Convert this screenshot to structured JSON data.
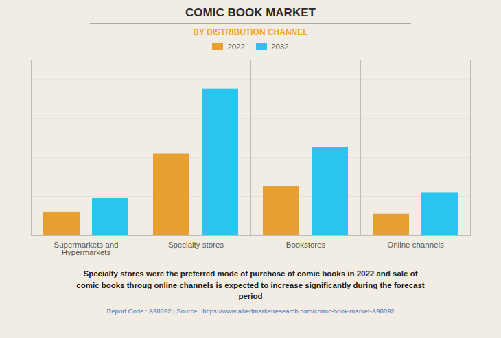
{
  "chart_data": {
    "type": "bar",
    "title": "COMIC BOOK MARKET",
    "subtitle": "BY DISTRIBUTION CHANNEL",
    "categories": [
      "Supermarkets and\nHypermarkets",
      "Specialty stores",
      "Bookstores",
      "Online channels"
    ],
    "series": [
      {
        "name": "2022",
        "color": "#E8A030",
        "values": [
          1.2,
          4.2,
          2.5,
          1.1
        ]
      },
      {
        "name": "2032",
        "color": "#29C4F0",
        "values": [
          1.9,
          7.5,
          4.5,
          2.2
        ]
      }
    ],
    "ylim": [
      0,
      9
    ],
    "yticks": [
      0,
      2,
      4,
      6,
      8
    ],
    "grid": true,
    "legend": "top",
    "tick_labels": "x",
    "annotations": [
      "Specialty stores were the preferred mode of purchase of comic books in 2022 and sale of\ncomic books throug online channels is expected to increase significantly during the forecast\nperiod",
      "Report Code : A98892  |  Source : https://www.alliedmarketresearch.com/comic-book-market-A98892"
    ]
  }
}
